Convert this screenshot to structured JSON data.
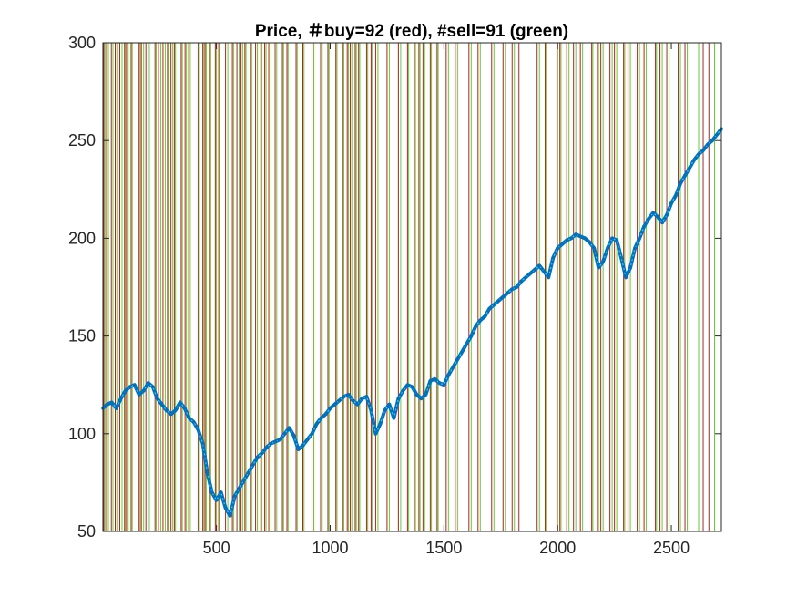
{
  "chart_data": {
    "type": "line",
    "title": "Price, ＃buy=92 (red), #sell=91 (green)",
    "xlim": [
      1,
      2720
    ],
    "ylim": [
      50,
      300
    ],
    "xticks": [
      500,
      1000,
      1500,
      2000,
      2500
    ],
    "yticks": [
      50,
      100,
      150,
      200,
      250,
      300
    ],
    "grid": false,
    "colors": {
      "price": "#0072BD",
      "price_marker": "#4DBEEE",
      "buy": "#B22222",
      "sell": "#66CC33"
    },
    "series": [
      {
        "values_x": [
          1,
          20,
          40,
          60,
          80,
          100,
          120,
          140,
          160,
          180,
          200,
          220,
          240,
          260,
          280,
          300,
          320,
          340,
          360,
          380,
          400,
          420,
          440,
          460,
          480,
          500,
          520,
          540,
          560,
          580,
          600,
          620,
          640,
          660,
          680,
          700,
          720,
          740,
          760,
          780,
          800,
          820,
          840,
          860,
          880,
          900,
          920,
          940,
          960,
          980,
          1000,
          1020,
          1040,
          1060,
          1080,
          1100,
          1120,
          1140,
          1160,
          1180,
          1200,
          1220,
          1240,
          1260,
          1280,
          1300,
          1320,
          1340,
          1360,
          1380,
          1400,
          1420,
          1440,
          1460,
          1480,
          1500,
          1520,
          1540,
          1560,
          1580,
          1600,
          1620,
          1640,
          1660,
          1680,
          1700,
          1720,
          1740,
          1760,
          1780,
          1800,
          1820,
          1840,
          1860,
          1880,
          1900,
          1920,
          1940,
          1960,
          1980,
          2000,
          2020,
          2040,
          2060,
          2080,
          2100,
          2120,
          2140,
          2160,
          2180,
          2200,
          2220,
          2240,
          2260,
          2280,
          2300,
          2320,
          2340,
          2360,
          2380,
          2400,
          2420,
          2440,
          2460,
          2480,
          2500,
          2520,
          2540,
          2560,
          2580,
          2600,
          2620,
          2640,
          2660,
          2680,
          2700,
          2720
        ],
        "values_y": [
          113,
          115,
          116,
          113,
          118,
          122,
          124,
          125,
          120,
          122,
          126,
          124,
          118,
          115,
          112,
          110,
          112,
          116,
          113,
          108,
          106,
          102,
          95,
          80,
          70,
          66,
          70,
          62,
          58,
          68,
          72,
          76,
          80,
          84,
          88,
          90,
          93,
          95,
          96,
          97,
          100,
          103,
          99,
          92,
          94,
          97,
          100,
          105,
          108,
          110,
          113,
          115,
          117,
          119,
          120,
          117,
          115,
          118,
          119,
          112,
          100,
          105,
          112,
          115,
          108,
          118,
          122,
          125,
          124,
          120,
          118,
          120,
          127,
          128,
          126,
          125,
          130,
          134,
          138,
          142,
          146,
          150,
          155,
          158,
          160,
          164,
          166,
          168,
          170,
          172,
          174,
          175,
          178,
          180,
          182,
          184,
          186,
          183,
          180,
          190,
          195,
          197,
          199,
          200,
          202,
          201,
          200,
          198,
          195,
          185,
          188,
          195,
          200,
          199,
          190,
          180,
          185,
          195,
          200,
          206,
          210,
          213,
          211,
          208,
          212,
          218,
          222,
          228,
          232,
          236,
          240,
          243,
          245,
          248,
          250,
          253,
          256
        ]
      }
    ],
    "buy_signals_x": [
      5,
      17,
      38,
      55,
      75,
      96,
      105,
      125,
      160,
      170,
      190,
      230,
      245,
      265,
      285,
      300,
      315,
      345,
      362,
      378,
      420,
      440,
      450,
      470,
      495,
      510,
      540,
      570,
      590,
      608,
      625,
      650,
      672,
      695,
      712,
      730,
      758,
      790,
      810,
      850,
      880,
      920,
      958,
      990,
      1025,
      1055,
      1075,
      1088,
      1110,
      1125,
      1160,
      1180,
      1200,
      1250,
      1300,
      1340,
      1370,
      1390,
      1408,
      1440,
      1470,
      1510,
      1550,
      1610,
      1650,
      1710,
      1760,
      1800,
      1830,
      1910,
      1945,
      1998,
      2010,
      2040,
      2070,
      2100,
      2150,
      2175,
      2190,
      2230,
      2250,
      2290,
      2310,
      2350,
      2380,
      2430,
      2450,
      2480,
      2530,
      2560,
      2640,
      2665
    ],
    "sell_signals_x": [
      10,
      25,
      45,
      62,
      85,
      100,
      112,
      130,
      165,
      180,
      205,
      235,
      255,
      275,
      290,
      308,
      320,
      350,
      368,
      385,
      425,
      445,
      455,
      475,
      500,
      515,
      550,
      575,
      600,
      615,
      630,
      655,
      680,
      700,
      718,
      740,
      765,
      795,
      815,
      855,
      885,
      928,
      965,
      995,
      1030,
      1060,
      1080,
      1095,
      1115,
      1130,
      1165,
      1185,
      1210,
      1260,
      1310,
      1345,
      1375,
      1395,
      1415,
      1445,
      1475,
      1520,
      1560,
      1620,
      1660,
      1720,
      1770,
      1810,
      1920,
      1950,
      2000,
      2015,
      2050,
      2080,
      2110,
      2155,
      2180,
      2200,
      2240,
      2260,
      2295,
      2320,
      2360,
      2390,
      2435,
      2460,
      2490,
      2540,
      2570,
      2620,
      2690
    ]
  }
}
